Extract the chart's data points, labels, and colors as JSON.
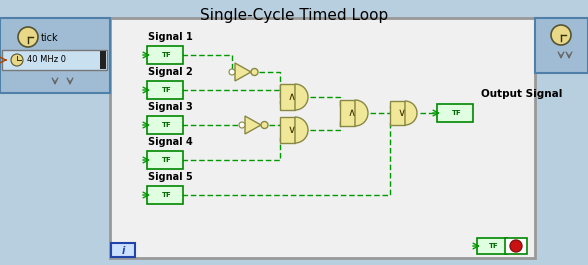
{
  "title": "Single-Cycle Timed Loop",
  "title_fontsize": 11,
  "bg_outer": "#b8cfe0",
  "bg_inner": "#f0f0f0",
  "bg_panel": "#a0bcd4",
  "border_color": "#5080a8",
  "gate_fill": "#f0e898",
  "gate_edge": "#888844",
  "tf_fill": "#e0ffe0",
  "tf_edge": "#008800",
  "wire_color": "#009900",
  "signals": [
    "Signal 1",
    "Signal 2",
    "Signal 3",
    "Signal 4",
    "Signal 5"
  ],
  "freq_label": "40 MHz 0",
  "tick_label": "tick"
}
